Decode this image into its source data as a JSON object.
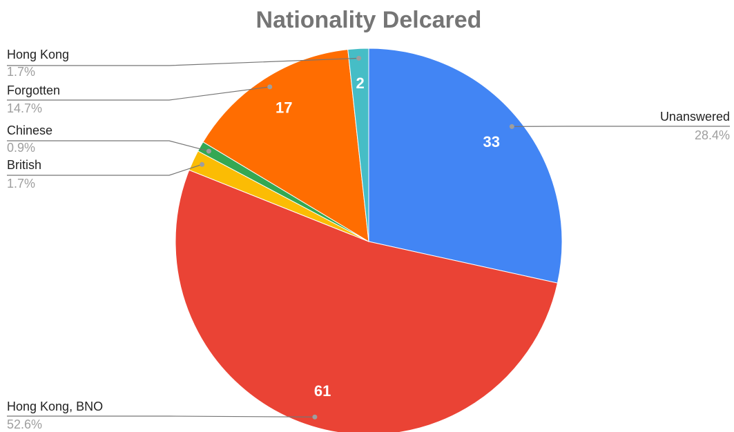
{
  "chart_data": {
    "type": "pie",
    "title": "Nationality Delcared",
    "categories": [
      "Unanswered",
      "Hong Kong, BNO",
      "British",
      "Chinese",
      "Forgotten",
      "Hong Kong"
    ],
    "values": [
      33,
      61,
      2,
      1,
      17,
      2
    ],
    "percentages": [
      28.4,
      52.6,
      1.7,
      0.9,
      14.7,
      1.7
    ],
    "percentage_labels": [
      "28.4%",
      "52.6%",
      "1.7%",
      "0.9%",
      "14.7%",
      "1.7%"
    ],
    "show_value_label": [
      true,
      true,
      false,
      false,
      true,
      true
    ],
    "colors": [
      "#4285f4",
      "#ea4335",
      "#fbbc04",
      "#34a853",
      "#ff6d01",
      "#46bdc6"
    ]
  }
}
